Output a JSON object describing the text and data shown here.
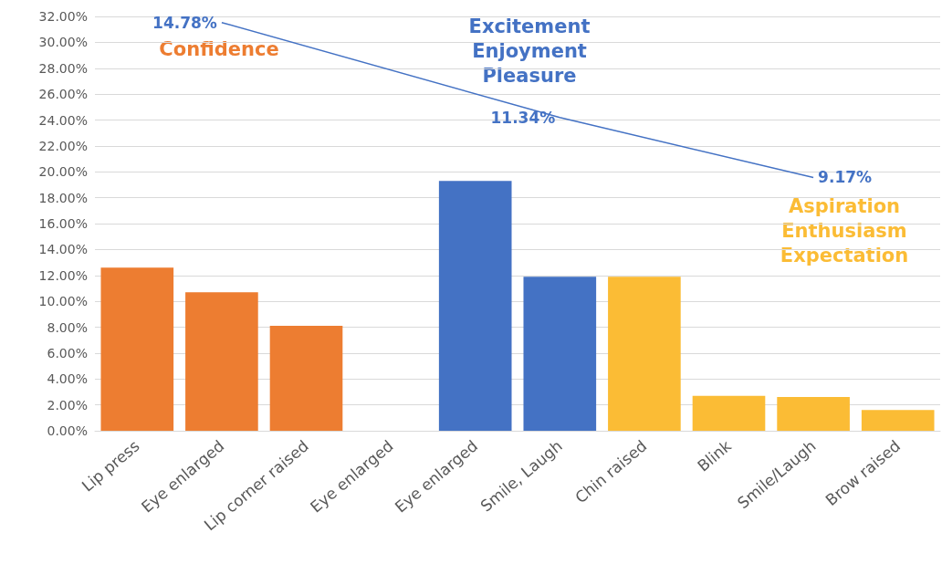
{
  "chart_data": {
    "type": "bar",
    "categories": [
      "Lip press",
      "Eye enlarged",
      "Lip corner raised",
      "Eye enlarged",
      "Eye enlarged",
      "Smile, Laugh",
      "Chin raised",
      "Blink",
      "Smile/Laugh",
      "Brow raised"
    ],
    "series": [
      {
        "type": "bar",
        "colors": [
          "#ed7d31",
          "#ed7d31",
          "#ed7d31",
          "#ed7d31",
          "#4472c4",
          "#4472c4",
          "#fbbc35",
          "#fbbc35",
          "#fbbc35",
          "#fbbc35"
        ],
        "values": [
          12.6,
          10.7,
          8.1,
          0,
          19.3,
          11.9,
          11.9,
          2.7,
          2.6,
          1.6
        ]
      },
      {
        "type": "line",
        "axis": "y2",
        "color": "#4472c4",
        "values": [
          null,
          14.78,
          null,
          null,
          null,
          11.34,
          null,
          null,
          9.17,
          null
        ],
        "value_labels": [
          null,
          "14.78%",
          null,
          null,
          null,
          "11.34%",
          null,
          null,
          "9.17%",
          null
        ]
      }
    ],
    "ylim": [
      0,
      32
    ],
    "yticks": [
      {
        "value": 0,
        "label": "0.00%"
      },
      {
        "value": 2,
        "label": "2.00%"
      },
      {
        "value": 4,
        "label": "4.00%"
      },
      {
        "value": 6,
        "label": "6.00%"
      },
      {
        "value": 8,
        "label": "8.00%"
      },
      {
        "value": 10,
        "label": "10.00%"
      },
      {
        "value": 12,
        "label": "12.00%"
      },
      {
        "value": 14,
        "label": "14.00%"
      },
      {
        "value": 16,
        "label": "16.00%"
      },
      {
        "value": 18,
        "label": "18.00%"
      },
      {
        "value": 20,
        "label": "20.00%"
      },
      {
        "value": 22,
        "label": "22.00%"
      },
      {
        "value": 24,
        "label": "24.00%"
      },
      {
        "value": 26,
        "label": "26.00%"
      },
      {
        "value": 28,
        "label": "28.00%"
      },
      {
        "value": 30,
        "label": "30.00%"
      },
      {
        "value": 32,
        "label": "32.00%"
      }
    ],
    "grid": "y",
    "marker": "none",
    "annotations": [
      "Confidence",
      "Excitement\nEnjoyment\nPleasure",
      "Aspiration\nEnthusiasm\nExpectation"
    ]
  }
}
